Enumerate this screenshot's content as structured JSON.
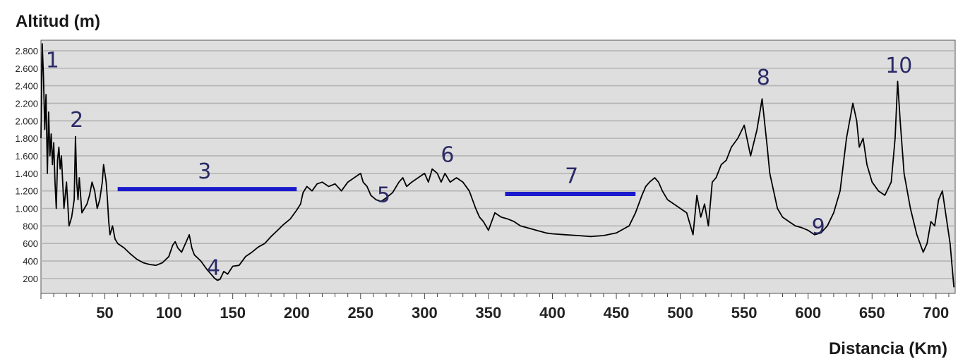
{
  "chart_data": {
    "type": "line",
    "ylabel": "Altitud (m)",
    "xlabel": "Distancia (Km)",
    "xlim": [
      0,
      715
    ],
    "ylim": [
      30,
      2920
    ],
    "x_ticks": [
      50,
      100,
      150,
      200,
      250,
      300,
      350,
      400,
      450,
      500,
      550,
      600,
      650,
      700
    ],
    "x_tick_labels": [
      "50",
      "100",
      "150",
      "200",
      "250",
      "300",
      "350",
      "400",
      "450",
      "500",
      "550",
      "600",
      "650",
      "700"
    ],
    "y_ticks": [
      200,
      400,
      600,
      800,
      1000,
      1200,
      1400,
      1600,
      1800,
      2000,
      2200,
      2400,
      2600,
      2800
    ],
    "y_tick_labels": [
      "200",
      "400",
      "600",
      "800",
      "1.000",
      "1.200",
      "1.400",
      "1.600",
      "1.800",
      "2.000",
      "2.200",
      "2.400",
      "2.600",
      "2.800"
    ],
    "grid": true,
    "colors": {
      "line": "#000000",
      "plot_bg": "#dedede",
      "grid": "#b4b4b4",
      "annotation": "#2a2a66",
      "segment": "#1a1acc"
    },
    "series": [
      {
        "x": [
          0,
          1,
          2,
          3,
          4,
          5,
          6,
          7,
          8,
          9,
          10,
          11,
          12,
          13,
          14,
          15,
          16,
          18,
          20,
          22,
          24,
          26,
          27,
          28,
          29,
          30,
          32,
          34,
          36,
          38,
          40,
          42,
          44,
          46,
          48,
          49,
          50,
          51,
          52,
          53,
          54,
          56,
          58,
          60,
          65,
          70,
          75,
          80,
          85,
          90,
          95,
          100,
          103,
          105,
          107,
          110,
          113,
          116,
          118,
          120,
          125,
          130,
          133,
          136,
          138,
          140,
          143,
          146,
          150,
          155,
          160,
          165,
          170,
          175,
          180,
          185,
          190,
          195,
          200,
          203,
          205,
          208,
          212,
          216,
          220,
          225,
          230,
          235,
          240,
          245,
          250,
          252,
          255,
          258,
          262,
          266,
          270,
          275,
          280,
          283,
          286,
          290,
          295,
          300,
          303,
          306,
          310,
          313,
          316,
          320,
          325,
          330,
          335,
          340,
          343,
          346,
          350,
          355,
          360,
          365,
          370,
          375,
          380,
          385,
          390,
          395,
          400,
          410,
          420,
          430,
          440,
          450,
          460,
          465,
          470,
          473,
          476,
          480,
          483,
          486,
          490,
          495,
          500,
          505,
          510,
          513,
          516,
          519,
          522,
          525,
          528,
          532,
          536,
          540,
          545,
          550,
          555,
          560,
          564,
          568,
          570,
          573,
          576,
          580,
          585,
          590,
          595,
          600,
          605,
          610,
          615,
          620,
          625,
          630,
          635,
          638,
          640,
          643,
          646,
          650,
          655,
          660,
          665,
          668,
          670,
          672,
          675,
          680,
          685,
          690,
          693,
          696,
          699,
          702,
          705,
          708,
          711,
          714
        ],
        "y": [
          1800,
          2880,
          2500,
          1900,
          2300,
          1400,
          2100,
          1600,
          1850,
          1500,
          1750,
          1300,
          1000,
          1550,
          1700,
          1450,
          1600,
          1000,
          1300,
          800,
          900,
          1100,
          1820,
          1300,
          1100,
          1350,
          950,
          1000,
          1050,
          1150,
          1300,
          1200,
          1000,
          1100,
          1300,
          1500,
          1400,
          1300,
          1100,
          850,
          700,
          800,
          650,
          600,
          550,
          480,
          420,
          380,
          360,
          350,
          380,
          450,
          580,
          620,
          550,
          500,
          600,
          700,
          550,
          470,
          400,
          300,
          250,
          200,
          180,
          190,
          280,
          250,
          340,
          350,
          450,
          500,
          560,
          600,
          680,
          750,
          820,
          880,
          980,
          1050,
          1180,
          1250,
          1200,
          1280,
          1300,
          1250,
          1280,
          1200,
          1300,
          1350,
          1400,
          1300,
          1250,
          1150,
          1100,
          1080,
          1120,
          1180,
          1300,
          1350,
          1250,
          1300,
          1350,
          1400,
          1300,
          1450,
          1400,
          1300,
          1400,
          1300,
          1350,
          1300,
          1200,
          1000,
          900,
          850,
          750,
          950,
          900,
          880,
          850,
          800,
          780,
          760,
          740,
          720,
          710,
          700,
          690,
          680,
          690,
          720,
          800,
          950,
          1150,
          1250,
          1300,
          1350,
          1300,
          1200,
          1100,
          1050,
          1000,
          950,
          700,
          1150,
          900,
          1050,
          800,
          1300,
          1350,
          1500,
          1550,
          1700,
          1800,
          1950,
          1600,
          1900,
          2250,
          1700,
          1400,
          1200,
          1000,
          900,
          850,
          800,
          780,
          750,
          700,
          720,
          800,
          950,
          1200,
          1800,
          2200,
          2000,
          1700,
          1800,
          1500,
          1300,
          1200,
          1150,
          1300,
          1800,
          2450,
          2000,
          1400,
          1000,
          700,
          500,
          600,
          850,
          800,
          1100,
          1200,
          900,
          600,
          100
        ]
      }
    ],
    "annotations": [
      {
        "text": "1",
        "x": 9,
        "y": 2700
      },
      {
        "text": "2",
        "x": 28,
        "y": 2020
      },
      {
        "text": "3",
        "x": 128,
        "y": 1430
      },
      {
        "text": "4",
        "x": 135,
        "y": 330
      },
      {
        "text": "5",
        "x": 268,
        "y": 1160
      },
      {
        "text": "6",
        "x": 318,
        "y": 1620
      },
      {
        "text": "7",
        "x": 415,
        "y": 1380
      },
      {
        "text": "8",
        "x": 565,
        "y": 2500
      },
      {
        "text": "9",
        "x": 608,
        "y": 800
      },
      {
        "text": "10",
        "x": 671,
        "y": 2640
      }
    ],
    "segments": [
      {
        "label": "3",
        "x0": 60,
        "x1": 200,
        "y": 1220
      },
      {
        "label": "7",
        "x0": 363,
        "x1": 465,
        "y": 1165
      }
    ]
  }
}
